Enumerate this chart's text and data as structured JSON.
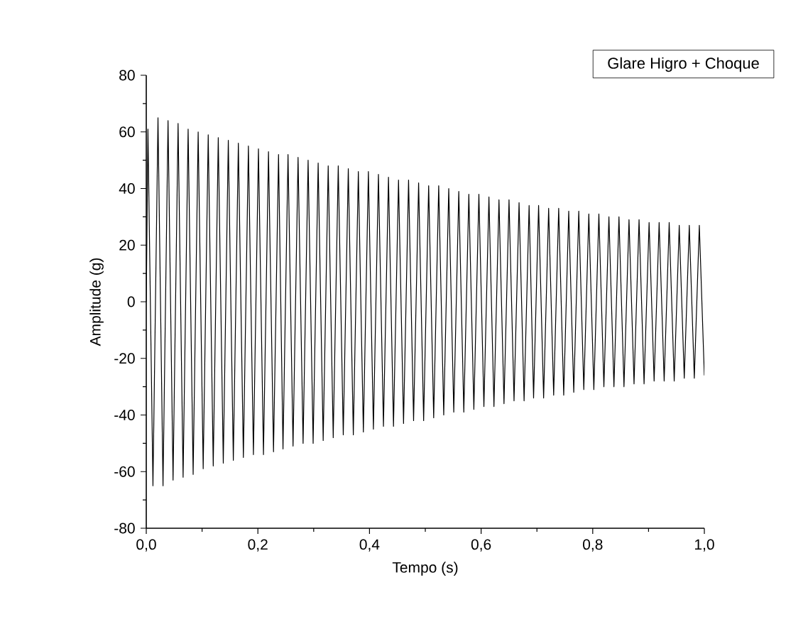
{
  "chart_data": {
    "type": "line",
    "xlabel": "Tempo (s)",
    "ylabel": "Amplitude (g)",
    "xlim": [
      0,
      1
    ],
    "ylim": [
      -80,
      80
    ],
    "xticks": [
      {
        "value": 0,
        "label": "0,0"
      },
      {
        "value": 0.2,
        "label": "0,2"
      },
      {
        "value": 0.4,
        "label": "0,4"
      },
      {
        "value": 0.6,
        "label": "0,6"
      },
      {
        "value": 0.8,
        "label": "0,8"
      },
      {
        "value": 1,
        "label": "1,0"
      }
    ],
    "yticks": [
      -80,
      -60,
      -40,
      -20,
      0,
      20,
      40,
      60,
      80
    ],
    "legend": "top right",
    "grid": false,
    "marker": "none",
    "line_style": "solid",
    "series": [
      {
        "name": "Glare Higro + Choque",
        "color": "#000000",
        "x": [
          0,
          0.003,
          0.012,
          0.021,
          0.03,
          0.039,
          0.048,
          0.057,
          0.066,
          0.075,
          0.084,
          0.093,
          0.102,
          0.111,
          0.12,
          0.129,
          0.138,
          0.147,
          0.156,
          0.165,
          0.174,
          0.183,
          0.192,
          0.201,
          0.21,
          0.219,
          0.228,
          0.237,
          0.245,
          0.254,
          0.263,
          0.272,
          0.281,
          0.29,
          0.299,
          0.308,
          0.317,
          0.326,
          0.335,
          0.344,
          0.353,
          0.362,
          0.371,
          0.38,
          0.389,
          0.398,
          0.407,
          0.416,
          0.425,
          0.434,
          0.443,
          0.452,
          0.461,
          0.47,
          0.479,
          0.488,
          0.497,
          0.506,
          0.515,
          0.524,
          0.533,
          0.542,
          0.551,
          0.56,
          0.569,
          0.578,
          0.587,
          0.596,
          0.605,
          0.614,
          0.623,
          0.632,
          0.641,
          0.65,
          0.659,
          0.668,
          0.677,
          0.686,
          0.694,
          0.703,
          0.712,
          0.721,
          0.73,
          0.739,
          0.748,
          0.757,
          0.766,
          0.775,
          0.784,
          0.793,
          0.802,
          0.811,
          0.82,
          0.829,
          0.838,
          0.847,
          0.856,
          0.865,
          0.874,
          0.883,
          0.892,
          0.901,
          0.91,
          0.919,
          0.928,
          0.937,
          0.946,
          0.955,
          0.964,
          0.973,
          0.982,
          0.991,
          1.0
        ],
        "values": [
          0,
          61,
          -65,
          65,
          -65,
          64,
          -63,
          63,
          -62,
          61,
          -61,
          60,
          -59,
          59,
          -58,
          58,
          -57,
          57,
          -56,
          56,
          -55,
          55,
          -54,
          54,
          -54,
          53,
          -53,
          52,
          -52,
          52,
          -51,
          51,
          -50,
          50,
          -50,
          49,
          -49,
          48,
          -48,
          48,
          -47,
          47,
          -47,
          46,
          -46,
          46,
          -45,
          45,
          -44,
          44,
          -44,
          43,
          -43,
          43,
          -42,
          42,
          -42,
          41,
          -41,
          41,
          -40,
          40,
          -39,
          39,
          -39,
          38,
          -38,
          38,
          -37,
          37,
          -37,
          36,
          -36,
          36,
          -35,
          35,
          -35,
          34,
          -34,
          34,
          -34,
          33,
          -33,
          33,
          -33,
          32,
          -32,
          32,
          -31,
          31,
          -31,
          31,
          -30,
          30,
          -30,
          30,
          -30,
          29,
          -29,
          29,
          -29,
          28,
          -28,
          28,
          -28,
          28,
          -28,
          27,
          -27,
          27,
          -27,
          27,
          -26
        ]
      }
    ]
  }
}
